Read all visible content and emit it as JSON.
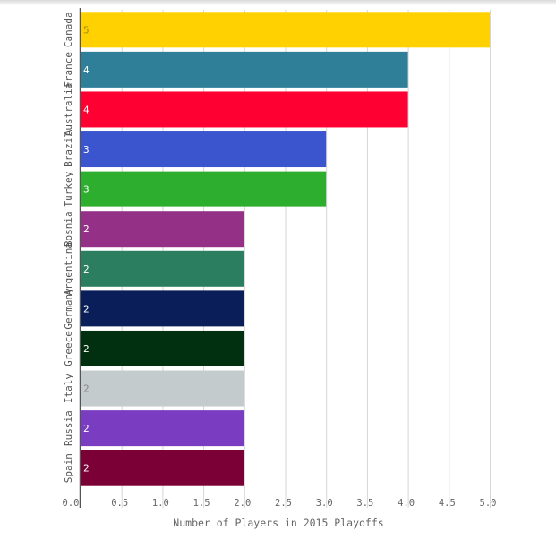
{
  "chart_data": {
    "type": "bar",
    "orientation": "horizontal",
    "categories": [
      "Canada",
      "France",
      "Australia",
      "Brazil",
      "Turkey",
      "Bosnia",
      "Argentina",
      "Germany",
      "Greece",
      "Italy",
      "Russia",
      "Spain"
    ],
    "values": [
      5,
      4,
      4,
      3,
      3,
      2,
      2,
      2,
      2,
      2,
      2,
      2
    ],
    "value_labels": [
      "5",
      "4",
      "4",
      "3",
      "3",
      "2",
      "2",
      "2",
      "2",
      "2",
      "2",
      "2"
    ],
    "colors": [
      "#ffd100",
      "#2f7f99",
      "#ff0033",
      "#3b55cf",
      "#2eae2e",
      "#943086",
      "#2b7e60",
      "#0a1e5a",
      "#003010",
      "#c4cbcd",
      "#7a3cc0",
      "#7a0036"
    ],
    "label_colors": [
      "#a08a10",
      "#ffffff",
      "#ffffff",
      "#ffffff",
      "#ffffff",
      "#ffffff",
      "#ffffff",
      "#ffffff",
      "#ffffff",
      "#888888",
      "#ffffff",
      "#ffffff"
    ],
    "title": "",
    "xlabel": "Number of Players in 2015 Playoffs",
    "ylabel": "",
    "xlim": [
      0,
      5.0
    ],
    "x_ticks": [
      "0.0",
      "0.5",
      "1.0",
      "1.5",
      "2.0",
      "2.5",
      "3.0",
      "3.5",
      "4.0",
      "4.5",
      "5.0"
    ],
    "grid": true,
    "legend": "none"
  }
}
